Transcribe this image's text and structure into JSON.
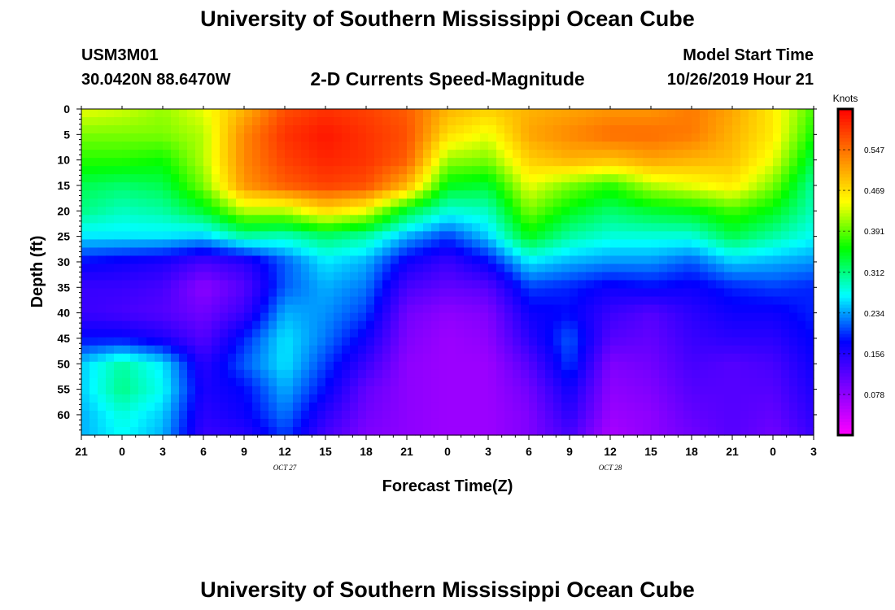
{
  "header": {
    "title_top": "University of Southern Mississippi Ocean Cube",
    "station_id": "USM3M01",
    "coordinates": "30.0420N 88.6470W",
    "subtitle": "2-D Currents Speed-Magnitude",
    "model_label": "Model Start Time",
    "model_time": "10/26/2019 Hour 21",
    "title_bottom": "University of Southern Mississippi Ocean Cube"
  },
  "chart_data": {
    "type": "heatmap",
    "title": "2-D Currents Speed-Magnitude",
    "xlabel": "Forecast Time(Z)",
    "ylabel": "Depth (ft)",
    "x_ticks": [
      "21",
      "0",
      "3",
      "6",
      "9",
      "12",
      "15",
      "18",
      "21",
      "0",
      "3",
      "6",
      "9",
      "12",
      "15",
      "18",
      "21",
      "0",
      "3"
    ],
    "x_date_labels": [
      {
        "tick_index": 5,
        "label": "OCT 27"
      },
      {
        "tick_index": 13,
        "label": "OCT 28"
      }
    ],
    "y_ticks": [
      "0",
      "5",
      "10",
      "15",
      "20",
      "25",
      "30",
      "35",
      "40",
      "45",
      "50",
      "55",
      "60"
    ],
    "ylim": [
      0,
      64
    ],
    "colorbar": {
      "units": "Knots",
      "tick_labels": [
        "0.547",
        "0.469",
        "0.391",
        "0.312",
        "0.234",
        "0.156",
        "0.078"
      ],
      "range": [
        0,
        0.625
      ],
      "colors": [
        "#ff00ff",
        "#8000ff",
        "#0000ff",
        "#00ffff",
        "#00ff00",
        "#ffff00",
        "#ff8000",
        "#ff0000"
      ]
    },
    "depths_ft": [
      0,
      5,
      10,
      15,
      20,
      25,
      30,
      35,
      40,
      45,
      50,
      55,
      60,
      64
    ],
    "hours": [
      0,
      3,
      6,
      9,
      12,
      15,
      18,
      21,
      24,
      27,
      30,
      33,
      36,
      39,
      42,
      45,
      48,
      51,
      54
    ],
    "values_knots": [
      [
        0.44,
        0.43,
        0.41,
        0.44,
        0.5,
        0.57,
        0.59,
        0.58,
        0.56,
        0.5,
        0.48,
        0.5,
        0.51,
        0.52,
        0.52,
        0.54,
        0.51,
        0.46,
        0.38
      ],
      [
        0.4,
        0.4,
        0.4,
        0.42,
        0.53,
        0.59,
        0.61,
        0.59,
        0.57,
        0.47,
        0.44,
        0.51,
        0.53,
        0.55,
        0.55,
        0.54,
        0.5,
        0.46,
        0.36
      ],
      [
        0.37,
        0.37,
        0.36,
        0.42,
        0.53,
        0.58,
        0.6,
        0.59,
        0.56,
        0.41,
        0.4,
        0.48,
        0.5,
        0.49,
        0.51,
        0.5,
        0.49,
        0.44,
        0.33
      ],
      [
        0.33,
        0.32,
        0.33,
        0.4,
        0.52,
        0.56,
        0.58,
        0.57,
        0.5,
        0.35,
        0.34,
        0.44,
        0.4,
        0.37,
        0.42,
        0.44,
        0.46,
        0.4,
        0.3
      ],
      [
        0.31,
        0.29,
        0.3,
        0.34,
        0.42,
        0.42,
        0.47,
        0.44,
        0.34,
        0.28,
        0.29,
        0.4,
        0.35,
        0.32,
        0.34,
        0.35,
        0.38,
        0.35,
        0.29
      ],
      [
        0.26,
        0.26,
        0.26,
        0.25,
        0.3,
        0.29,
        0.32,
        0.3,
        0.24,
        0.2,
        0.25,
        0.35,
        0.3,
        0.28,
        0.28,
        0.28,
        0.33,
        0.3,
        0.27
      ],
      [
        0.18,
        0.17,
        0.16,
        0.13,
        0.15,
        0.21,
        0.26,
        0.24,
        0.17,
        0.14,
        0.18,
        0.26,
        0.24,
        0.23,
        0.23,
        0.21,
        0.25,
        0.24,
        0.23
      ],
      [
        0.14,
        0.14,
        0.13,
        0.08,
        0.12,
        0.21,
        0.24,
        0.22,
        0.13,
        0.11,
        0.12,
        0.2,
        0.19,
        0.17,
        0.18,
        0.17,
        0.19,
        0.2,
        0.19
      ],
      [
        0.14,
        0.13,
        0.12,
        0.1,
        0.14,
        0.24,
        0.23,
        0.2,
        0.1,
        0.08,
        0.09,
        0.17,
        0.18,
        0.14,
        0.12,
        0.15,
        0.17,
        0.17,
        0.19
      ],
      [
        0.18,
        0.18,
        0.16,
        0.12,
        0.19,
        0.26,
        0.22,
        0.17,
        0.09,
        0.07,
        0.08,
        0.15,
        0.21,
        0.12,
        0.11,
        0.14,
        0.15,
        0.15,
        0.18
      ],
      [
        0.25,
        0.3,
        0.26,
        0.15,
        0.21,
        0.26,
        0.2,
        0.14,
        0.08,
        0.07,
        0.07,
        0.12,
        0.2,
        0.09,
        0.1,
        0.13,
        0.12,
        0.13,
        0.17
      ],
      [
        0.25,
        0.31,
        0.27,
        0.16,
        0.18,
        0.24,
        0.18,
        0.11,
        0.08,
        0.07,
        0.07,
        0.1,
        0.17,
        0.08,
        0.09,
        0.12,
        0.12,
        0.12,
        0.16
      ],
      [
        0.24,
        0.28,
        0.25,
        0.15,
        0.17,
        0.22,
        0.15,
        0.1,
        0.08,
        0.07,
        0.07,
        0.09,
        0.15,
        0.07,
        0.08,
        0.11,
        0.12,
        0.11,
        0.15
      ],
      [
        0.24,
        0.27,
        0.24,
        0.14,
        0.15,
        0.2,
        0.13,
        0.09,
        0.08,
        0.07,
        0.07,
        0.09,
        0.13,
        0.06,
        0.08,
        0.1,
        0.12,
        0.1,
        0.14
      ]
    ]
  }
}
